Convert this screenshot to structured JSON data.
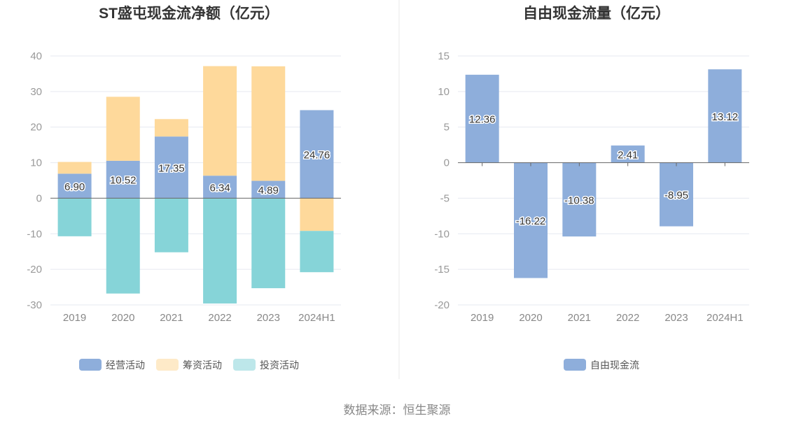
{
  "source": "数据来源：恒生聚源",
  "colors": {
    "operating": "#8eaedb",
    "financing": "#fed99b",
    "investing": "#86d4d8",
    "free_cash_flow": "#8eaedb",
    "grid": "#e6e9f0",
    "axis": "#666666",
    "divider": "#e8e8e8"
  },
  "chart_data": [
    {
      "type": "bar",
      "stacked": true,
      "title": "ST盛屯现金流净额（亿元）",
      "categories": [
        "2019",
        "2020",
        "2021",
        "2022",
        "2023",
        "2024H1"
      ],
      "ylim": [
        -30,
        40
      ],
      "yticks": [
        40,
        30,
        20,
        10,
        0,
        -10,
        -20,
        -30
      ],
      "grid": true,
      "legend_position": "bottom",
      "series": [
        {
          "name": "经营活动",
          "color_key": "operating",
          "values": [
            6.9,
            10.52,
            17.35,
            6.34,
            4.89,
            24.76
          ],
          "show_labels": true
        },
        {
          "name": "筹资活动",
          "color_key": "financing",
          "values": [
            3.3,
            18.0,
            4.9,
            30.8,
            32.2,
            -9.2
          ],
          "show_labels": false
        },
        {
          "name": "投资活动",
          "color_key": "investing",
          "values": [
            -10.7,
            -26.8,
            -15.2,
            -29.6,
            -25.3,
            -11.6
          ],
          "show_labels": false
        }
      ]
    },
    {
      "type": "bar",
      "stacked": false,
      "title": "自由现金流量（亿元）",
      "categories": [
        "2019",
        "2020",
        "2021",
        "2022",
        "2023",
        "2024H1"
      ],
      "ylim": [
        -20,
        15
      ],
      "yticks": [
        15,
        10,
        5,
        0,
        -5,
        -10,
        -15,
        -20
      ],
      "grid": true,
      "legend_position": "bottom",
      "series": [
        {
          "name": "自由现金流",
          "color_key": "free_cash_flow",
          "values": [
            12.36,
            -16.22,
            -10.38,
            2.41,
            -8.95,
            13.12
          ],
          "show_labels": true
        }
      ]
    }
  ]
}
